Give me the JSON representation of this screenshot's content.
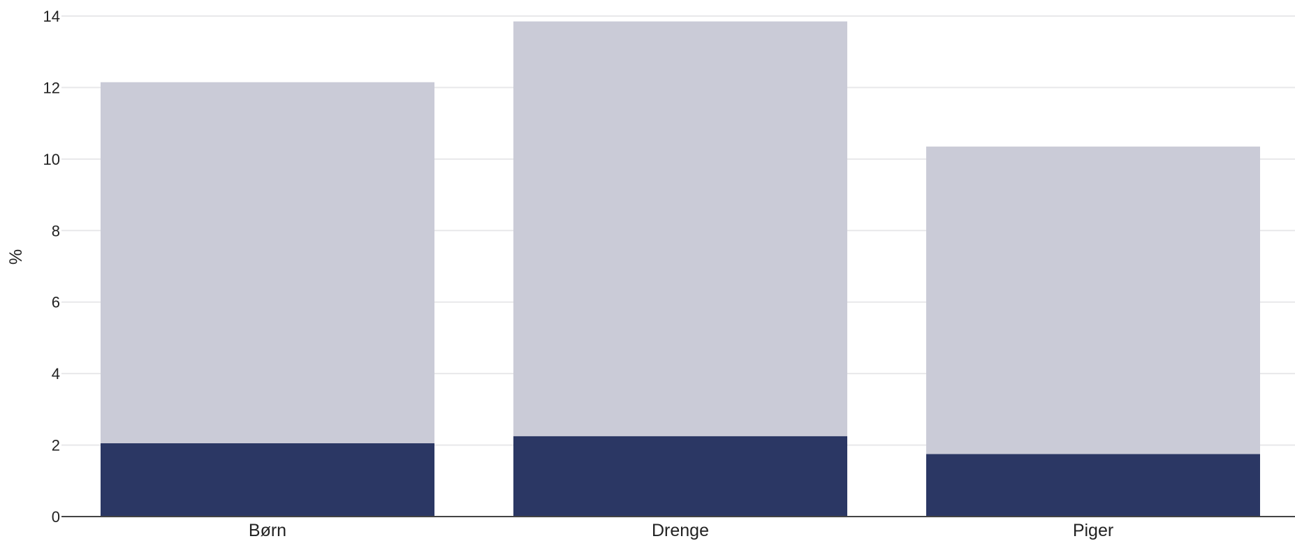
{
  "chart_data": {
    "type": "bar",
    "stacked": true,
    "categories": [
      "Børn",
      "Drenge",
      "Piger"
    ],
    "series": [
      {
        "values": [
          2.05,
          2.25,
          1.75
        ],
        "color": "#2b3764"
      },
      {
        "values": [
          10.1,
          11.6,
          8.6
        ],
        "color": "#cacbd7"
      }
    ],
    "title": "",
    "xlabel": "",
    "ylabel": "%",
    "ylim": [
      0,
      14
    ],
    "yticks": [
      0,
      2,
      4,
      6,
      8,
      10,
      12,
      14
    ],
    "grid": true,
    "legend": "none"
  }
}
